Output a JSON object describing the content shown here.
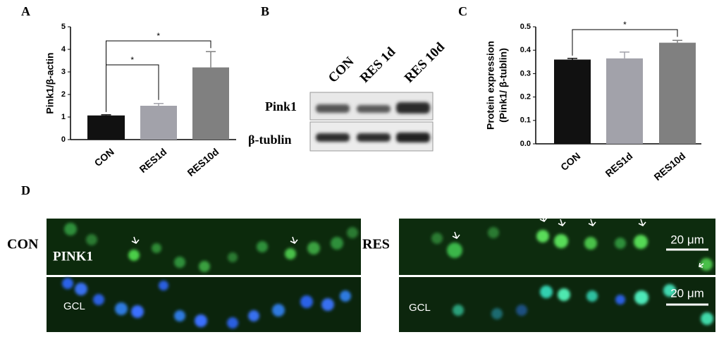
{
  "panel_labels": [
    "A",
    "B",
    "C",
    "D"
  ],
  "chart_data": [
    {
      "type": "bar",
      "ylabel": "Pink1/β-actin",
      "categories": [
        "CON",
        "RES1d",
        "RES10d"
      ],
      "values": [
        1.07,
        1.5,
        3.2
      ],
      "errors": [
        0.03,
        0.1,
        0.7
      ],
      "colors": [
        "#111111",
        "#a2a2aa",
        "#808080"
      ],
      "ylim": [
        0,
        5
      ],
      "yticks": [
        0,
        1,
        2,
        3,
        4,
        5
      ],
      "significance": [
        {
          "bars": [
            0,
            1
          ],
          "label": "*"
        },
        {
          "bars": [
            0,
            2
          ],
          "label": "*"
        }
      ]
    },
    {
      "type": "bar",
      "ylabel": [
        "Protein expression",
        "(Pink1/ β-tublin)"
      ],
      "categories": [
        "CON",
        "RES1d",
        "RES10d"
      ],
      "values": [
        0.36,
        0.365,
        0.432
      ],
      "errors": [
        0.005,
        0.027,
        0.01
      ],
      "colors": [
        "#111111",
        "#a2a2aa",
        "#808080"
      ],
      "ylim": [
        0,
        0.5
      ],
      "yticks": [
        {
          "value": 0,
          "label": "0.0"
        },
        0.1,
        0.2,
        0.3,
        0.4,
        0.5
      ],
      "significance": [
        {
          "bars": [
            0,
            2
          ],
          "label": "*"
        }
      ]
    }
  ],
  "blot": {
    "lanes": [
      "CON",
      "RES 1d",
      "RES 10d"
    ],
    "rows": [
      "Pink1",
      "β-tublin"
    ]
  },
  "microscopy": {
    "groups": [
      "CON",
      "RES"
    ],
    "stain": "PINK1",
    "layer_labels": [
      "GCL",
      "GCL"
    ],
    "scale_bars": [
      "20 μm",
      "20 μm"
    ]
  }
}
